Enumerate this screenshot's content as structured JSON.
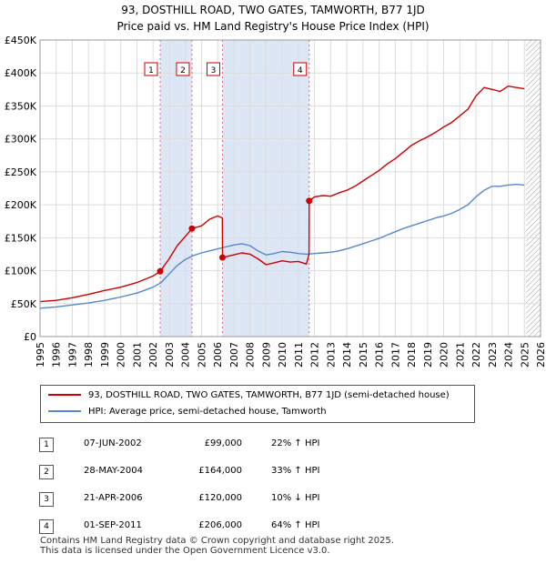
{
  "title_line1": "93, DOSTHILL ROAD, TWO GATES, TAMWORTH, B77 1JD",
  "title_line2": "Price paid vs. HM Land Registry's House Price Index (HPI)",
  "colors": {
    "property": "#cc0000",
    "hpi": "#5588cc",
    "shade": "#dde6f5",
    "grid": "#dddddd"
  },
  "chart_data": {
    "type": "line",
    "xlim": [
      1995,
      2026
    ],
    "ylim": [
      0,
      450000
    ],
    "x_ticks": [
      "1995",
      "1996",
      "1997",
      "1998",
      "1999",
      "2000",
      "2001",
      "2002",
      "2003",
      "2004",
      "2005",
      "2006",
      "2007",
      "2008",
      "2009",
      "2010",
      "2011",
      "2012",
      "2013",
      "2014",
      "2015",
      "2016",
      "2017",
      "2018",
      "2019",
      "2020",
      "2021",
      "2022",
      "2023",
      "2024",
      "2025",
      "2026"
    ],
    "y_ticks": [
      {
        "value": 0,
        "label": "£0"
      },
      {
        "value": 50000,
        "label": "£50K"
      },
      {
        "value": 100000,
        "label": "£100K"
      },
      {
        "value": 150000,
        "label": "£150K"
      },
      {
        "value": 200000,
        "label": "£200K"
      },
      {
        "value": 250000,
        "label": "£250K"
      },
      {
        "value": 300000,
        "label": "£300K"
      },
      {
        "value": 350000,
        "label": "£350K"
      },
      {
        "value": 400000,
        "label": "£400K"
      },
      {
        "value": 450000,
        "label": "£450K"
      }
    ],
    "shaded_ranges": [
      [
        2002.44,
        2004.41
      ],
      [
        2006.3,
        2011.67
      ]
    ],
    "forecast_from": 2025.1,
    "series": [
      {
        "name": "93, DOSTHILL ROAD, TWO GATES, TAMWORTH, B77 1JD (semi-detached house)",
        "x": [
          1995.0,
          1996.0,
          1997.0,
          1998.0,
          1999.0,
          2000.0,
          2001.0,
          2002.0,
          2002.44,
          2003.0,
          2003.5,
          2004.0,
          2004.41,
          2005.0,
          2005.5,
          2006.0,
          2006.29,
          2006.3,
          2007.0,
          2007.5,
          2008.0,
          2008.5,
          2009.0,
          2009.5,
          2010.0,
          2010.5,
          2011.0,
          2011.5,
          2011.66,
          2011.67,
          2012.0,
          2012.5,
          2013.0,
          2013.5,
          2014.0,
          2014.5,
          2015.0,
          2015.5,
          2016.0,
          2016.5,
          2017.0,
          2017.5,
          2018.0,
          2018.5,
          2019.0,
          2019.5,
          2020.0,
          2020.5,
          2021.0,
          2021.5,
          2022.0,
          2022.5,
          2023.0,
          2023.5,
          2024.0,
          2024.5,
          2025.0
        ],
        "values": [
          53000,
          55000,
          59000,
          64000,
          70000,
          75000,
          82000,
          92000,
          99000,
          118000,
          138000,
          152000,
          164000,
          168000,
          178000,
          183000,
          180000,
          120000,
          124000,
          127000,
          125000,
          118000,
          109000,
          112000,
          115000,
          113000,
          114000,
          110000,
          125000,
          206000,
          212000,
          214000,
          213000,
          218000,
          222000,
          228000,
          236000,
          244000,
          252000,
          262000,
          270000,
          280000,
          290000,
          297000,
          303000,
          310000,
          318000,
          325000,
          335000,
          345000,
          365000,
          378000,
          375000,
          372000,
          380000,
          378000,
          376000
        ]
      },
      {
        "name": "HPI: Average price, semi-detached house, Tamworth",
        "x": [
          1995.0,
          1996.0,
          1997.0,
          1998.0,
          1999.0,
          2000.0,
          2001.0,
          2002.0,
          2002.5,
          2003.0,
          2003.5,
          2004.0,
          2004.5,
          2005.0,
          2005.5,
          2006.0,
          2006.5,
          2007.0,
          2007.5,
          2008.0,
          2008.5,
          2009.0,
          2009.5,
          2010.0,
          2010.5,
          2011.0,
          2011.5,
          2012.0,
          2012.5,
          2013.0,
          2013.5,
          2014.0,
          2014.5,
          2015.0,
          2015.5,
          2016.0,
          2016.5,
          2017.0,
          2017.5,
          2018.0,
          2018.5,
          2019.0,
          2019.5,
          2020.0,
          2020.5,
          2021.0,
          2021.5,
          2022.0,
          2022.5,
          2023.0,
          2023.5,
          2024.0,
          2024.5,
          2025.0
        ],
        "values": [
          43000,
          45000,
          48000,
          51000,
          55000,
          60000,
          66000,
          75000,
          82000,
          95000,
          108000,
          117000,
          123000,
          127000,
          130000,
          133000,
          136000,
          139000,
          141000,
          138000,
          130000,
          124000,
          126000,
          129000,
          128000,
          126000,
          125000,
          126000,
          127000,
          128000,
          130000,
          133000,
          137000,
          141000,
          145000,
          149000,
          154000,
          159000,
          164000,
          168000,
          172000,
          176000,
          180000,
          183000,
          187000,
          193000,
          200000,
          212000,
          222000,
          228000,
          228000,
          230000,
          231000,
          230000
        ]
      }
    ],
    "sales": [
      {
        "label": "1",
        "x": 2002.44,
        "value": 99000
      },
      {
        "label": "2",
        "x": 2004.41,
        "value": 164000
      },
      {
        "label": "3",
        "x": 2006.3,
        "value": 120000
      },
      {
        "label": "4",
        "x": 2011.67,
        "value": 206000
      }
    ]
  },
  "legend": {
    "property_label": "93, DOSTHILL ROAD, TWO GATES, TAMWORTH, B77 1JD (semi-detached house)",
    "hpi_label": "HPI: Average price, semi-detached house, Tamworth"
  },
  "sales_table": [
    {
      "num": "1",
      "date": "07-JUN-2002",
      "price": "£99,000",
      "hpi": "22% ↑ HPI"
    },
    {
      "num": "2",
      "date": "28-MAY-2004",
      "price": "£164,000",
      "hpi": "33% ↑ HPI"
    },
    {
      "num": "3",
      "date": "21-APR-2006",
      "price": "£120,000",
      "hpi": "10% ↓ HPI"
    },
    {
      "num": "4",
      "date": "01-SEP-2011",
      "price": "£206,000",
      "hpi": "64% ↑ HPI"
    }
  ],
  "footer_line1": "Contains HM Land Registry data © Crown copyright and database right 2025.",
  "footer_line2": "This data is licensed under the Open Government Licence v3.0."
}
